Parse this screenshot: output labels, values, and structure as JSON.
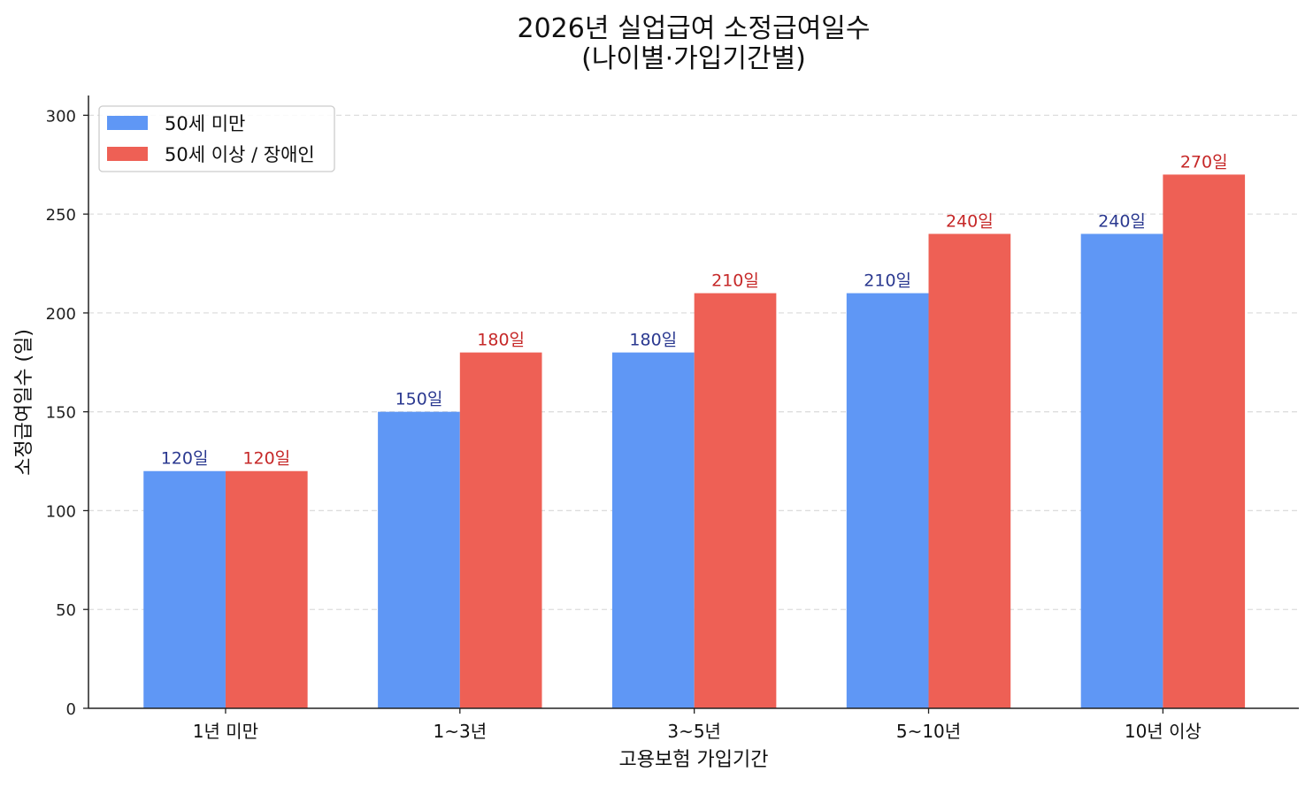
{
  "chart_data": {
    "type": "bar",
    "title": "2026년 실업급여 소정급여일수\n(나이별·가입기간별)",
    "xlabel": "고용보험 가입기간",
    "ylabel": "소정급여일수 (일)",
    "categories": [
      "1년 미만",
      "1~3년",
      "3~5년",
      "5~10년",
      "10년 이상"
    ],
    "ylim": [
      0,
      310
    ],
    "yticks": [
      0,
      50,
      100,
      150,
      200,
      250,
      300
    ],
    "grid": "y, dashed",
    "legend_position": "top-left",
    "value_suffix": "일",
    "series": [
      {
        "name": "50세 미만",
        "values": [
          120,
          150,
          180,
          210,
          240
        ],
        "color": "#5F97F5",
        "label_color": "#2B3990"
      },
      {
        "name": "50세 이상 / 장애인",
        "values": [
          120,
          180,
          210,
          240,
          270
        ],
        "color": "#EE6055",
        "label_color": "#C62828"
      }
    ]
  }
}
